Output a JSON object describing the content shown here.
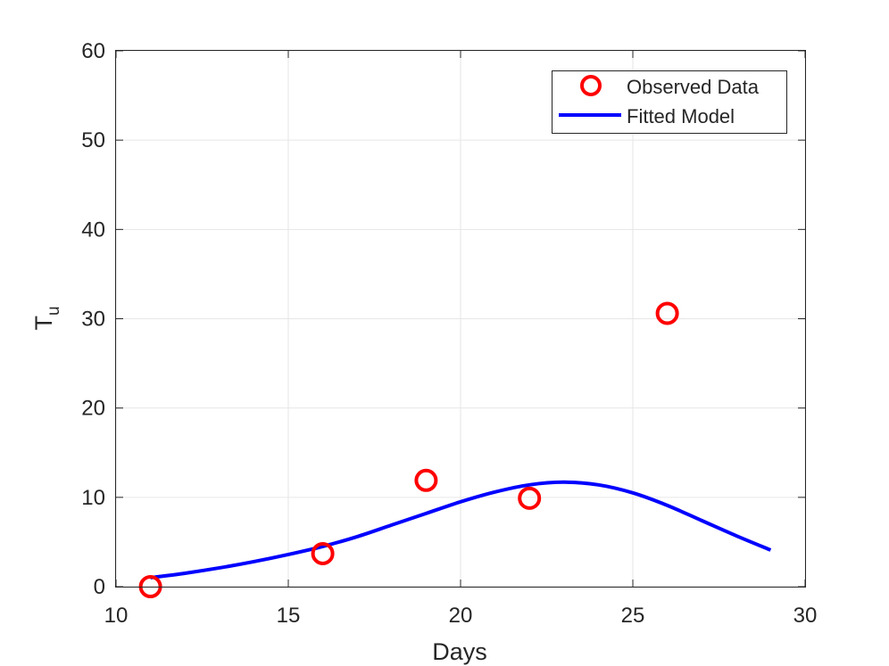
{
  "chart_data": {
    "type": "line",
    "xlabel": "Days",
    "ylabel": {
      "base": "T",
      "subscript": "u"
    },
    "xlim": [
      10,
      30
    ],
    "ylim": [
      0,
      60
    ],
    "xticks": [
      10,
      15,
      20,
      25,
      30
    ],
    "yticks": [
      0,
      10,
      20,
      30,
      40,
      50,
      60
    ],
    "grid": true,
    "legend_position": "top-right",
    "series": [
      {
        "name": "Observed Data",
        "style": "markers",
        "marker": "circle",
        "color": "#ff0000",
        "x": [
          11,
          16,
          19,
          22,
          26
        ],
        "y": [
          0,
          3.7,
          11.9,
          9.9,
          30.6
        ]
      },
      {
        "name": "Fitted Model",
        "style": "line",
        "color": "#0000ff",
        "x": [
          11,
          12,
          13,
          14,
          15,
          16,
          17,
          18,
          19,
          20,
          21,
          22,
          23,
          24,
          25,
          26,
          27,
          28,
          29
        ],
        "y": [
          1.0,
          1.5,
          2.1,
          2.8,
          3.6,
          4.5,
          5.6,
          6.9,
          8.2,
          9.5,
          10.6,
          11.4,
          11.7,
          11.4,
          10.5,
          9.1,
          7.4,
          5.7,
          4.1
        ]
      }
    ]
  }
}
